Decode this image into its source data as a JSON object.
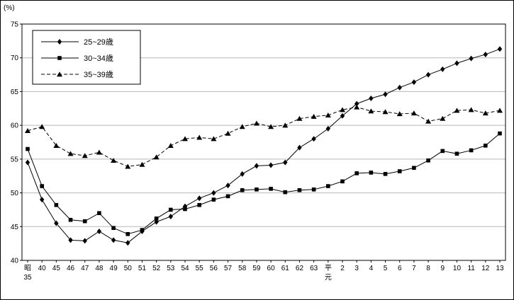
{
  "chart_data": {
    "type": "line",
    "title": "",
    "unit_label": "(%)",
    "xlabel": "",
    "ylabel": "(%)",
    "ylim": [
      40,
      75
    ],
    "yticks": [
      40,
      45,
      50,
      55,
      60,
      65,
      70,
      75
    ],
    "grid": true,
    "legend_position": "top-left",
    "categories": [
      [
        "昭",
        "35"
      ],
      [
        "40"
      ],
      [
        "45"
      ],
      [
        "46"
      ],
      [
        "47"
      ],
      [
        "48"
      ],
      [
        "49"
      ],
      [
        "50"
      ],
      [
        "51"
      ],
      [
        "52"
      ],
      [
        "53"
      ],
      [
        "54"
      ],
      [
        "55"
      ],
      [
        "56"
      ],
      [
        "57"
      ],
      [
        "58"
      ],
      [
        "59"
      ],
      [
        "60"
      ],
      [
        "61"
      ],
      [
        "62"
      ],
      [
        "63"
      ],
      [
        "平",
        "元"
      ],
      [
        "2"
      ],
      [
        "3"
      ],
      [
        "4"
      ],
      [
        "5"
      ],
      [
        "6"
      ],
      [
        "7"
      ],
      [
        "8"
      ],
      [
        "9"
      ],
      [
        "10"
      ],
      [
        "11"
      ],
      [
        "12"
      ],
      [
        "13"
      ]
    ],
    "series": [
      {
        "name": "25~29歳",
        "marker": "diamond",
        "dash": "solid",
        "values": [
          54.5,
          49.0,
          45.5,
          43.0,
          42.9,
          44.3,
          43.0,
          42.6,
          44.3,
          45.7,
          46.5,
          48.0,
          49.2,
          50.0,
          51.1,
          52.8,
          54.0,
          54.1,
          54.5,
          56.7,
          58.0,
          59.5,
          61.4,
          63.2,
          64.0,
          64.6,
          65.6,
          66.4,
          67.5,
          68.3,
          69.2,
          69.9,
          70.5,
          71.3
        ]
      },
      {
        "name": "30~34歳",
        "marker": "square",
        "dash": "solid",
        "values": [
          56.5,
          51.0,
          48.2,
          46.0,
          45.8,
          47.0,
          44.8,
          43.9,
          44.5,
          46.2,
          47.5,
          47.6,
          48.2,
          49.0,
          49.5,
          50.4,
          50.5,
          50.6,
          50.1,
          50.4,
          50.5,
          51.0,
          51.7,
          52.9,
          53.0,
          52.8,
          53.2,
          53.7,
          54.8,
          56.2,
          55.8,
          56.3,
          57.0,
          58.8
        ]
      },
      {
        "name": "35~39歳",
        "marker": "triangle",
        "dash": "dashed",
        "values": [
          59.2,
          59.8,
          57.0,
          55.8,
          55.5,
          56.0,
          54.8,
          53.9,
          54.2,
          55.3,
          57.0,
          58.0,
          58.2,
          58.0,
          58.8,
          59.8,
          60.3,
          59.8,
          60.0,
          61.0,
          61.3,
          61.5,
          62.3,
          62.7,
          62.1,
          62.0,
          61.7,
          61.8,
          60.6,
          61.0,
          62.2,
          62.3,
          61.8,
          62.2
        ]
      }
    ],
    "colors": {
      "line": "#000000",
      "grid": "#b8b8b8",
      "background": "#ffffff"
    }
  }
}
